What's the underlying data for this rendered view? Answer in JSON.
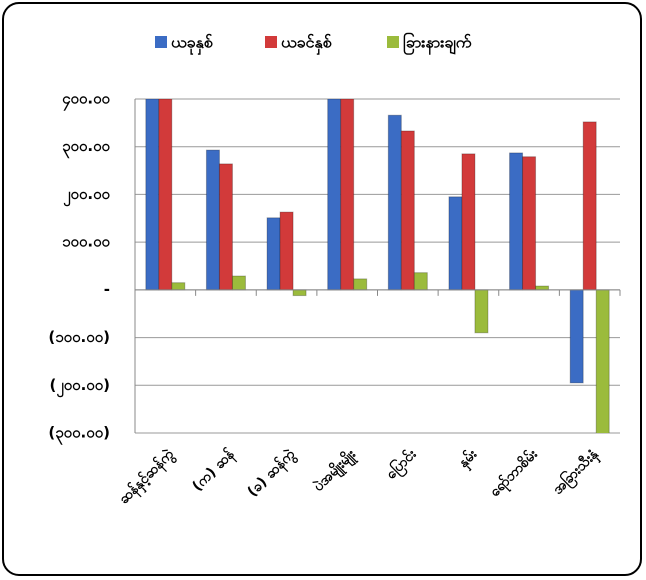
{
  "chart_data": {
    "type": "bar",
    "categories": [
      "ဆန်နှင့်ဆန်ကွဲ",
      "(က) ဆန်",
      "(ခ) ဆန်ကွဲ",
      "ပဲအမျိုးမျိုး",
      "ပြောင်း",
      "နှမ်း",
      "ရော်ဘာစိမ်း",
      "အခြားသီးနှံ"
    ],
    "series": [
      {
        "name": "ယခုနှစ်",
        "color": "#3b6cc4",
        "values": [
          400,
          293,
          151,
          400,
          366,
          195,
          287,
          -195
        ]
      },
      {
        "name": "ယခင်နှစ်",
        "color": "#d23a3a",
        "values": [
          400,
          264,
          163,
          400,
          333,
          285,
          279,
          352
        ]
      },
      {
        "name": "ခြားနားချက်",
        "color": "#9bbb3c",
        "values": [
          15,
          29,
          -12,
          23,
          36,
          -90,
          8,
          -308
        ]
      }
    ],
    "ylim": [
      -300,
      400
    ],
    "yticks": [
      {
        "value": -300,
        "label": "(၃၀၀.၀၀)"
      },
      {
        "value": -200,
        "label": "(၂၀၀.၀၀)"
      },
      {
        "value": -100,
        "label": "(၁၀၀.၀၀)"
      },
      {
        "value": 0,
        "label": "-"
      },
      {
        "value": 100,
        "label": "၁၀၀.၀၀"
      },
      {
        "value": 200,
        "label": "၂၀၀.၀၀"
      },
      {
        "value": 300,
        "label": "၃၀၀.၀၀"
      },
      {
        "value": 400,
        "label": "၄၀၀.၀၀"
      }
    ],
    "grid": true,
    "legend": "top"
  }
}
